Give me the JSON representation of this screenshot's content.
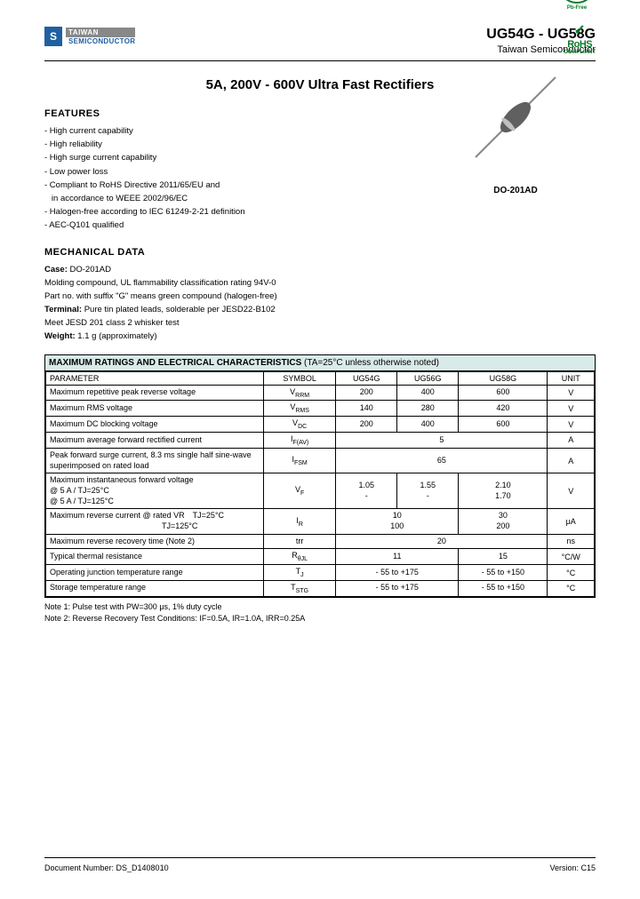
{
  "header": {
    "logo_s": "S",
    "logo_line1": "TAIWAN",
    "logo_line2": "SEMICONDUCTOR",
    "part_range": "UG54G - UG58G",
    "company": "Taiwan Semiconductor"
  },
  "title": "5A, 200V - 600V Ultra Fast Rectifiers",
  "features": {
    "heading": "FEATURES",
    "items": [
      "- High current capability",
      "- High reliability",
      "- High surge current capability",
      "- Low power loss",
      "- Compliant to RoHS Directive 2011/65/EU and",
      "   in accordance to WEEE 2002/96/EC",
      "- Halogen-free according to IEC 61249-2-21 definition",
      "- AEC-Q101 qualified"
    ]
  },
  "package_label": "DO-201AD",
  "pb_label": "Pb",
  "pb_sub": "Pb-Free",
  "rohs_text": "RoHS",
  "rohs_sub": "COMPLIANT",
  "mechdata": {
    "heading": "MECHANICAL DATA",
    "lines": [
      "Case: DO-201AD",
      "Molding compound, UL flammability classification rating 94V-0",
      "Part no. with suffix \"G\" means green compound (halogen-free)",
      "Terminal: Pure tin plated leads, solderable per JESD22-B102",
      "Meet JESD 201 class 2 whisker test",
      "Weight: 1.1 g (approximately)"
    ]
  },
  "table": {
    "title_prefix": "MAXIMUM RATINGS AND ELECTRICAL CHARACTERISTICS",
    "title_cond": " (TA=25°C unless otherwise noted)",
    "columns": [
      "PARAMETER",
      "SYMBOL",
      "UG54G",
      "UG56G",
      "UG58G",
      "UNIT"
    ],
    "rows": [
      {
        "p": "Maximum repetitive peak reverse voltage",
        "s": "VRRM",
        "v": [
          "200",
          "400",
          "600"
        ],
        "u": "V"
      },
      {
        "p": "Maximum RMS voltage",
        "s": "VRMS",
        "v": [
          "140",
          "280",
          "420"
        ],
        "u": "V"
      },
      {
        "p": "Maximum DC blocking voltage",
        "s": "VDC",
        "v": [
          "200",
          "400",
          "600"
        ],
        "u": "V"
      },
      {
        "p": "Maximum average forward rectified current",
        "s": "IF(AV)",
        "v": [
          "5"
        ],
        "u": "A",
        "span": 3
      },
      {
        "p": "Peak forward surge current, 8.3 ms single half sine-wave superimposed on rated load",
        "s": "IFSM",
        "v": [
          "65"
        ],
        "u": "A",
        "span": 3
      },
      {
        "p": "Maximum instantaneous forward voltage\n@ 5 A / TJ=25°C\n@ 5 A / TJ=125°C",
        "s": "VF",
        "v": [
          "1.05\n-",
          "1.55\n-",
          "2.10\n1.70"
        ],
        "u": "V"
      },
      {
        "p": "Maximum reverse current @ rated VR TJ=25°C\n              TJ=125°C",
        "s": "IR",
        "v": [
          "10\n100",
          "30\n200"
        ],
        "u": "μA",
        "spans": [
          2,
          1
        ]
      },
      {
        "p": "Maximum reverse recovery time (Note 2)",
        "s": "trr",
        "v": [
          "20"
        ],
        "u": "ns",
        "span": 3
      },
      {
        "p": "Typical thermal resistance",
        "s": "RθJL",
        "v": [
          "11",
          "15"
        ],
        "u": "°C/W",
        "spans": [
          2,
          1
        ]
      },
      {
        "p": "Operating junction temperature range",
        "s": "TJ",
        "v": [
          "- 55 to +175",
          "- 55 to +150"
        ],
        "u": "°C",
        "spans": [
          2,
          1
        ]
      },
      {
        "p": "Storage temperature range",
        "s": "TSTG",
        "v": [
          "- 55 to +175",
          "- 55 to +150"
        ],
        "u": "°C",
        "spans": [
          2,
          1
        ]
      }
    ]
  },
  "notes": [
    "Note 1: Pulse test with PW=300 μs, 1% duty cycle",
    "Note 2: Reverse Recovery Test Conditions: IF=0.5A, IR=1.0A, IRR=0.25A"
  ],
  "footer": {
    "left": "Document Number: DS_D1408010",
    "right": "Version: C15"
  }
}
